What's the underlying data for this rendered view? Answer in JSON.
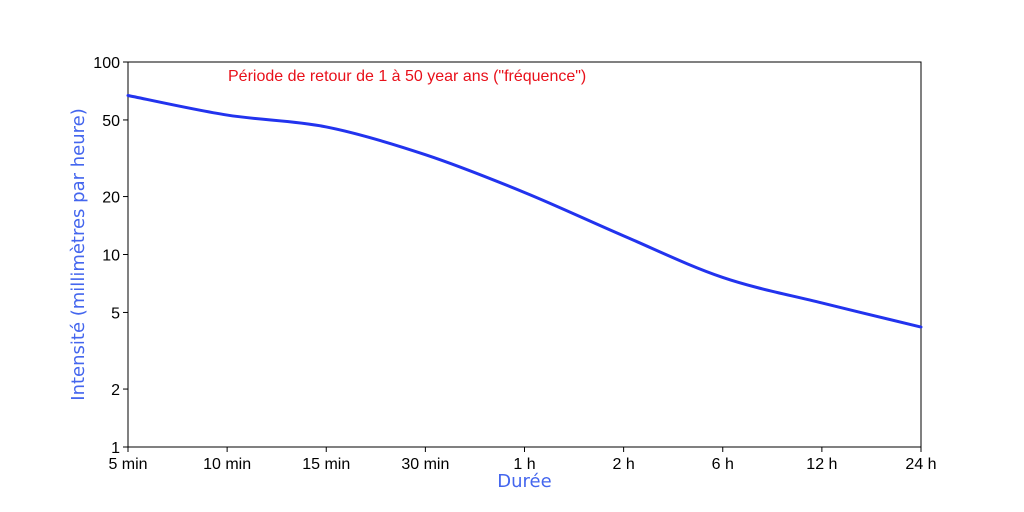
{
  "chart_data": {
    "type": "line",
    "annotation": "Période de retour de 1 à 50 year ans (\"fréquence\")",
    "xlabel": "Durée",
    "ylabel": "Intensité (millimètres par heure)",
    "y_scale": "log",
    "ylim": [
      1,
      100
    ],
    "y_ticks": [
      1,
      2,
      5,
      10,
      20,
      50,
      100
    ],
    "categories": [
      "5 min",
      "10 min",
      "15 min",
      "30 min",
      "1 h",
      "2 h",
      "6 h",
      "12 h",
      "24 h"
    ],
    "series": [
      {
        "values": [
          67,
          53,
          46,
          33,
          21,
          12.5,
          7.6,
          5.6,
          4.2
        ]
      }
    ],
    "grid": false,
    "colors": {
      "line": "#2233ee",
      "annotation": "#e8101a",
      "axis_title": "#4466ee",
      "frame": "#000000"
    }
  }
}
